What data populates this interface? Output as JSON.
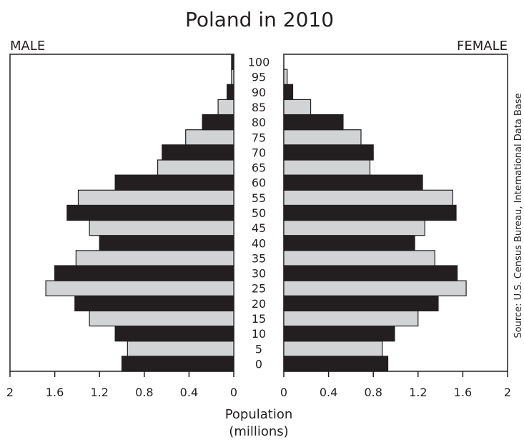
{
  "chart_data": {
    "type": "bar",
    "title": "Poland in 2010",
    "left_panel_label": "MALE",
    "right_panel_label": "FEMALE",
    "xlabel_line1": "Population",
    "xlabel_line2": "(millions)",
    "source": "Source: U.S. Census Bureau, International Data Base",
    "age_labels": [
      "0",
      "5",
      "10",
      "15",
      "20",
      "25",
      "30",
      "35",
      "40",
      "45",
      "50",
      "55",
      "60",
      "65",
      "70",
      "75",
      "80",
      "85",
      "90",
      "95",
      "100"
    ],
    "x_tick_labels_left": [
      "2",
      "1.6",
      "1.2",
      "0.8",
      "0.4",
      "0"
    ],
    "x_tick_labels_right": [
      "0",
      "0.4",
      "0.8",
      "1.2",
      "1.6",
      "2"
    ],
    "xlim": [
      0,
      2
    ],
    "series": [
      {
        "name": "MALE",
        "values": [
          1.0,
          0.95,
          1.06,
          1.29,
          1.42,
          1.68,
          1.6,
          1.41,
          1.2,
          1.29,
          1.49,
          1.39,
          1.06,
          0.68,
          0.64,
          0.43,
          0.28,
          0.14,
          0.06,
          0.02,
          0.02
        ]
      },
      {
        "name": "FEMALE",
        "values": [
          0.93,
          0.88,
          0.99,
          1.2,
          1.38,
          1.63,
          1.55,
          1.35,
          1.17,
          1.26,
          1.54,
          1.51,
          1.24,
          0.77,
          0.8,
          0.69,
          0.53,
          0.24,
          0.08,
          0.03,
          0.0
        ]
      }
    ],
    "colors": {
      "dark_bar": "#231f20",
      "light_bar": "#d1d3d4",
      "outline": "#231f20"
    },
    "alternating_fill": "even age groups light, odd age groups dark"
  }
}
